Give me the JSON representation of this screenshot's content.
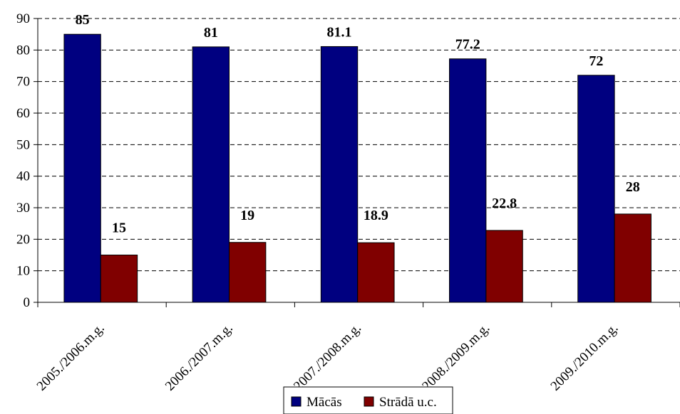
{
  "chart_data": {
    "type": "bar",
    "title": "",
    "xlabel": "",
    "ylabel": "",
    "ylim": [
      0,
      90
    ],
    "yticks": [
      0,
      10,
      20,
      30,
      40,
      50,
      60,
      70,
      80,
      90
    ],
    "grid": true,
    "legend_position": "bottom",
    "categories": [
      "2005./2006.m.g.",
      "2006./2007.m.g.",
      "2007./2008.m.g.",
      "2008./2009.m.g.",
      "2009./2010.m.g."
    ],
    "series": [
      {
        "name": "Mācās",
        "values": [
          85,
          81,
          81.1,
          77.2,
          72
        ],
        "labels": [
          "85",
          "81",
          "81.1",
          "77.2",
          "72"
        ],
        "color": "#000080"
      },
      {
        "name": "Strādā u.c.",
        "values": [
          15,
          19,
          18.9,
          22.8,
          28
        ],
        "labels": [
          "15",
          "19",
          "18.9",
          "22.8",
          "28"
        ],
        "color": "#800000"
      }
    ]
  }
}
